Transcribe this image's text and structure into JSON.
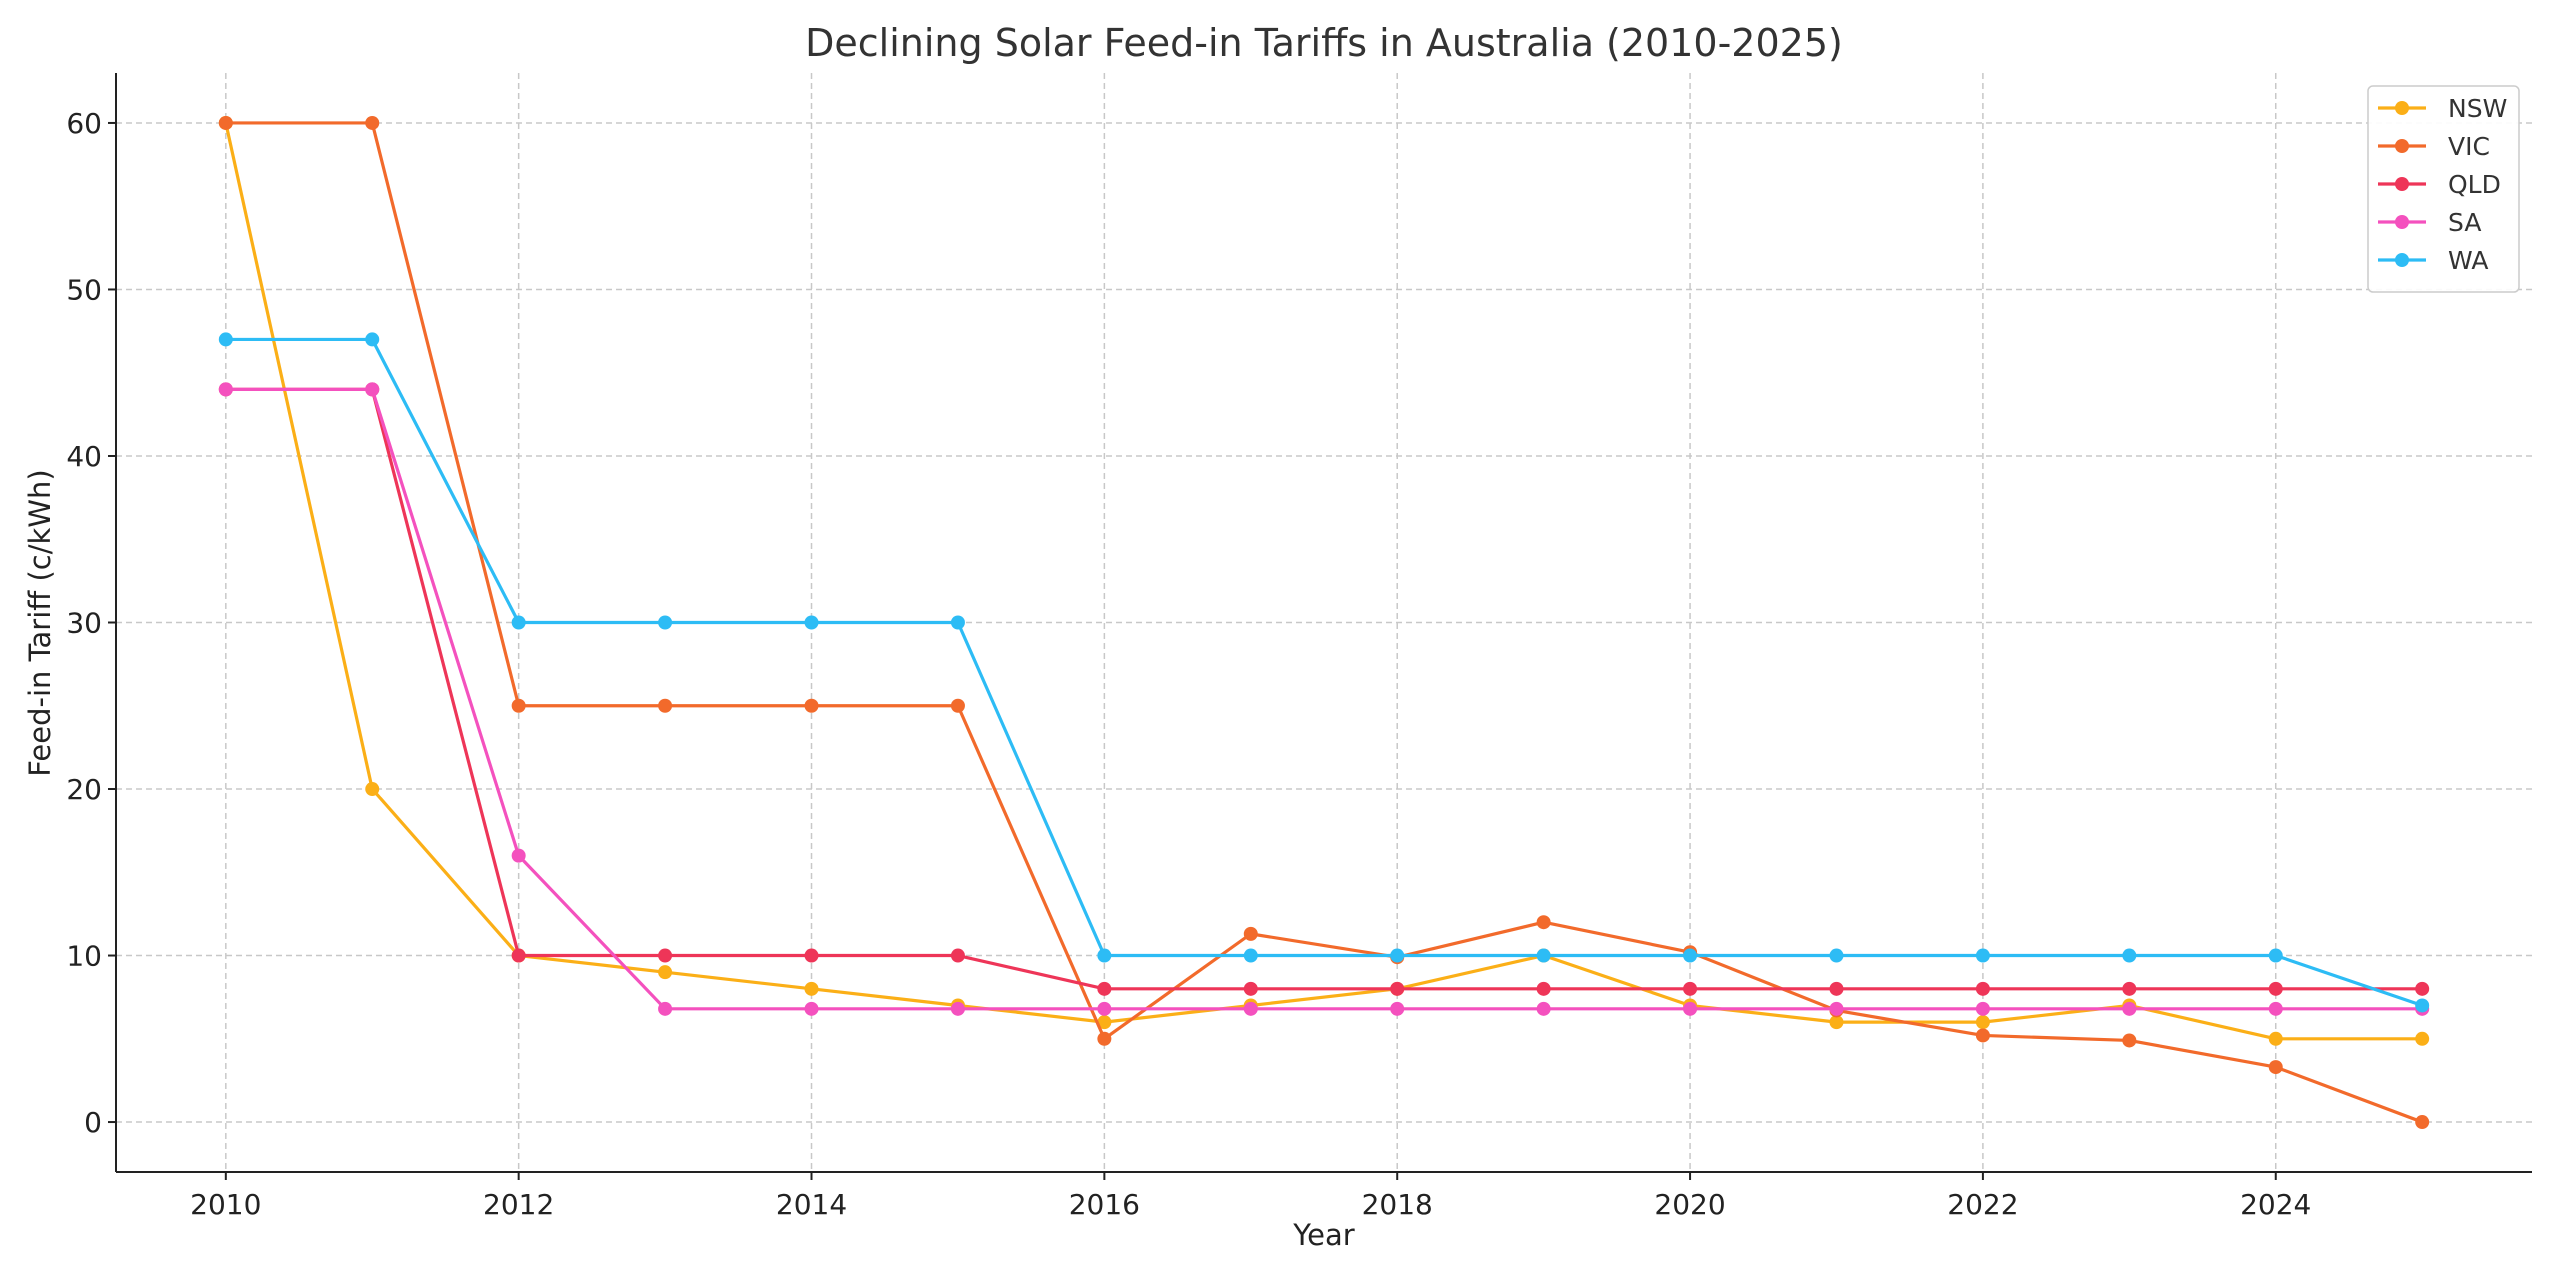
{
  "chart_data": {
    "type": "line",
    "title": "Declining Solar Feed-in Tariffs in Australia (2010-2025)",
    "xlabel": "Year",
    "ylabel": "Feed-in Tariff (c/kWh)",
    "x": [
      2010,
      2011,
      2012,
      2013,
      2014,
      2015,
      2016,
      2017,
      2018,
      2019,
      2020,
      2021,
      2022,
      2023,
      2024,
      2025
    ],
    "xlim": [
      2009.25,
      2025.75
    ],
    "ylim": [
      -3,
      63
    ],
    "xticks": [
      2010,
      2012,
      2014,
      2016,
      2018,
      2020,
      2022,
      2024
    ],
    "yticks": [
      0,
      10,
      20,
      30,
      40,
      50,
      60
    ],
    "grid": true,
    "legend_position": "top-right",
    "series": [
      {
        "name": "NSW",
        "color": "#FBAF17",
        "values": [
          60,
          20,
          10,
          9,
          8,
          7,
          6,
          7,
          8,
          10,
          7,
          6,
          6,
          7,
          5,
          5
        ]
      },
      {
        "name": "VIC",
        "color": "#F26A2B",
        "values": [
          60,
          60,
          25,
          25,
          25,
          25,
          5,
          11.3,
          9.9,
          12,
          10.2,
          6.7,
          5.2,
          4.9,
          3.3,
          0
        ]
      },
      {
        "name": "QLD",
        "color": "#EE3558",
        "values": [
          44,
          44,
          10,
          10,
          10,
          10,
          8,
          8,
          8,
          8,
          8,
          8,
          8,
          8,
          8,
          8
        ]
      },
      {
        "name": "SA",
        "color": "#F451BE",
        "values": [
          44,
          44,
          16,
          6.8,
          6.8,
          6.8,
          6.8,
          6.8,
          6.8,
          6.8,
          6.8,
          6.8,
          6.8,
          6.8,
          6.8,
          6.8
        ]
      },
      {
        "name": "WA",
        "color": "#2DBCF5",
        "values": [
          47,
          47,
          30,
          30,
          30,
          30,
          10,
          10,
          10,
          10,
          10,
          10,
          10,
          10,
          10,
          7
        ]
      }
    ]
  }
}
